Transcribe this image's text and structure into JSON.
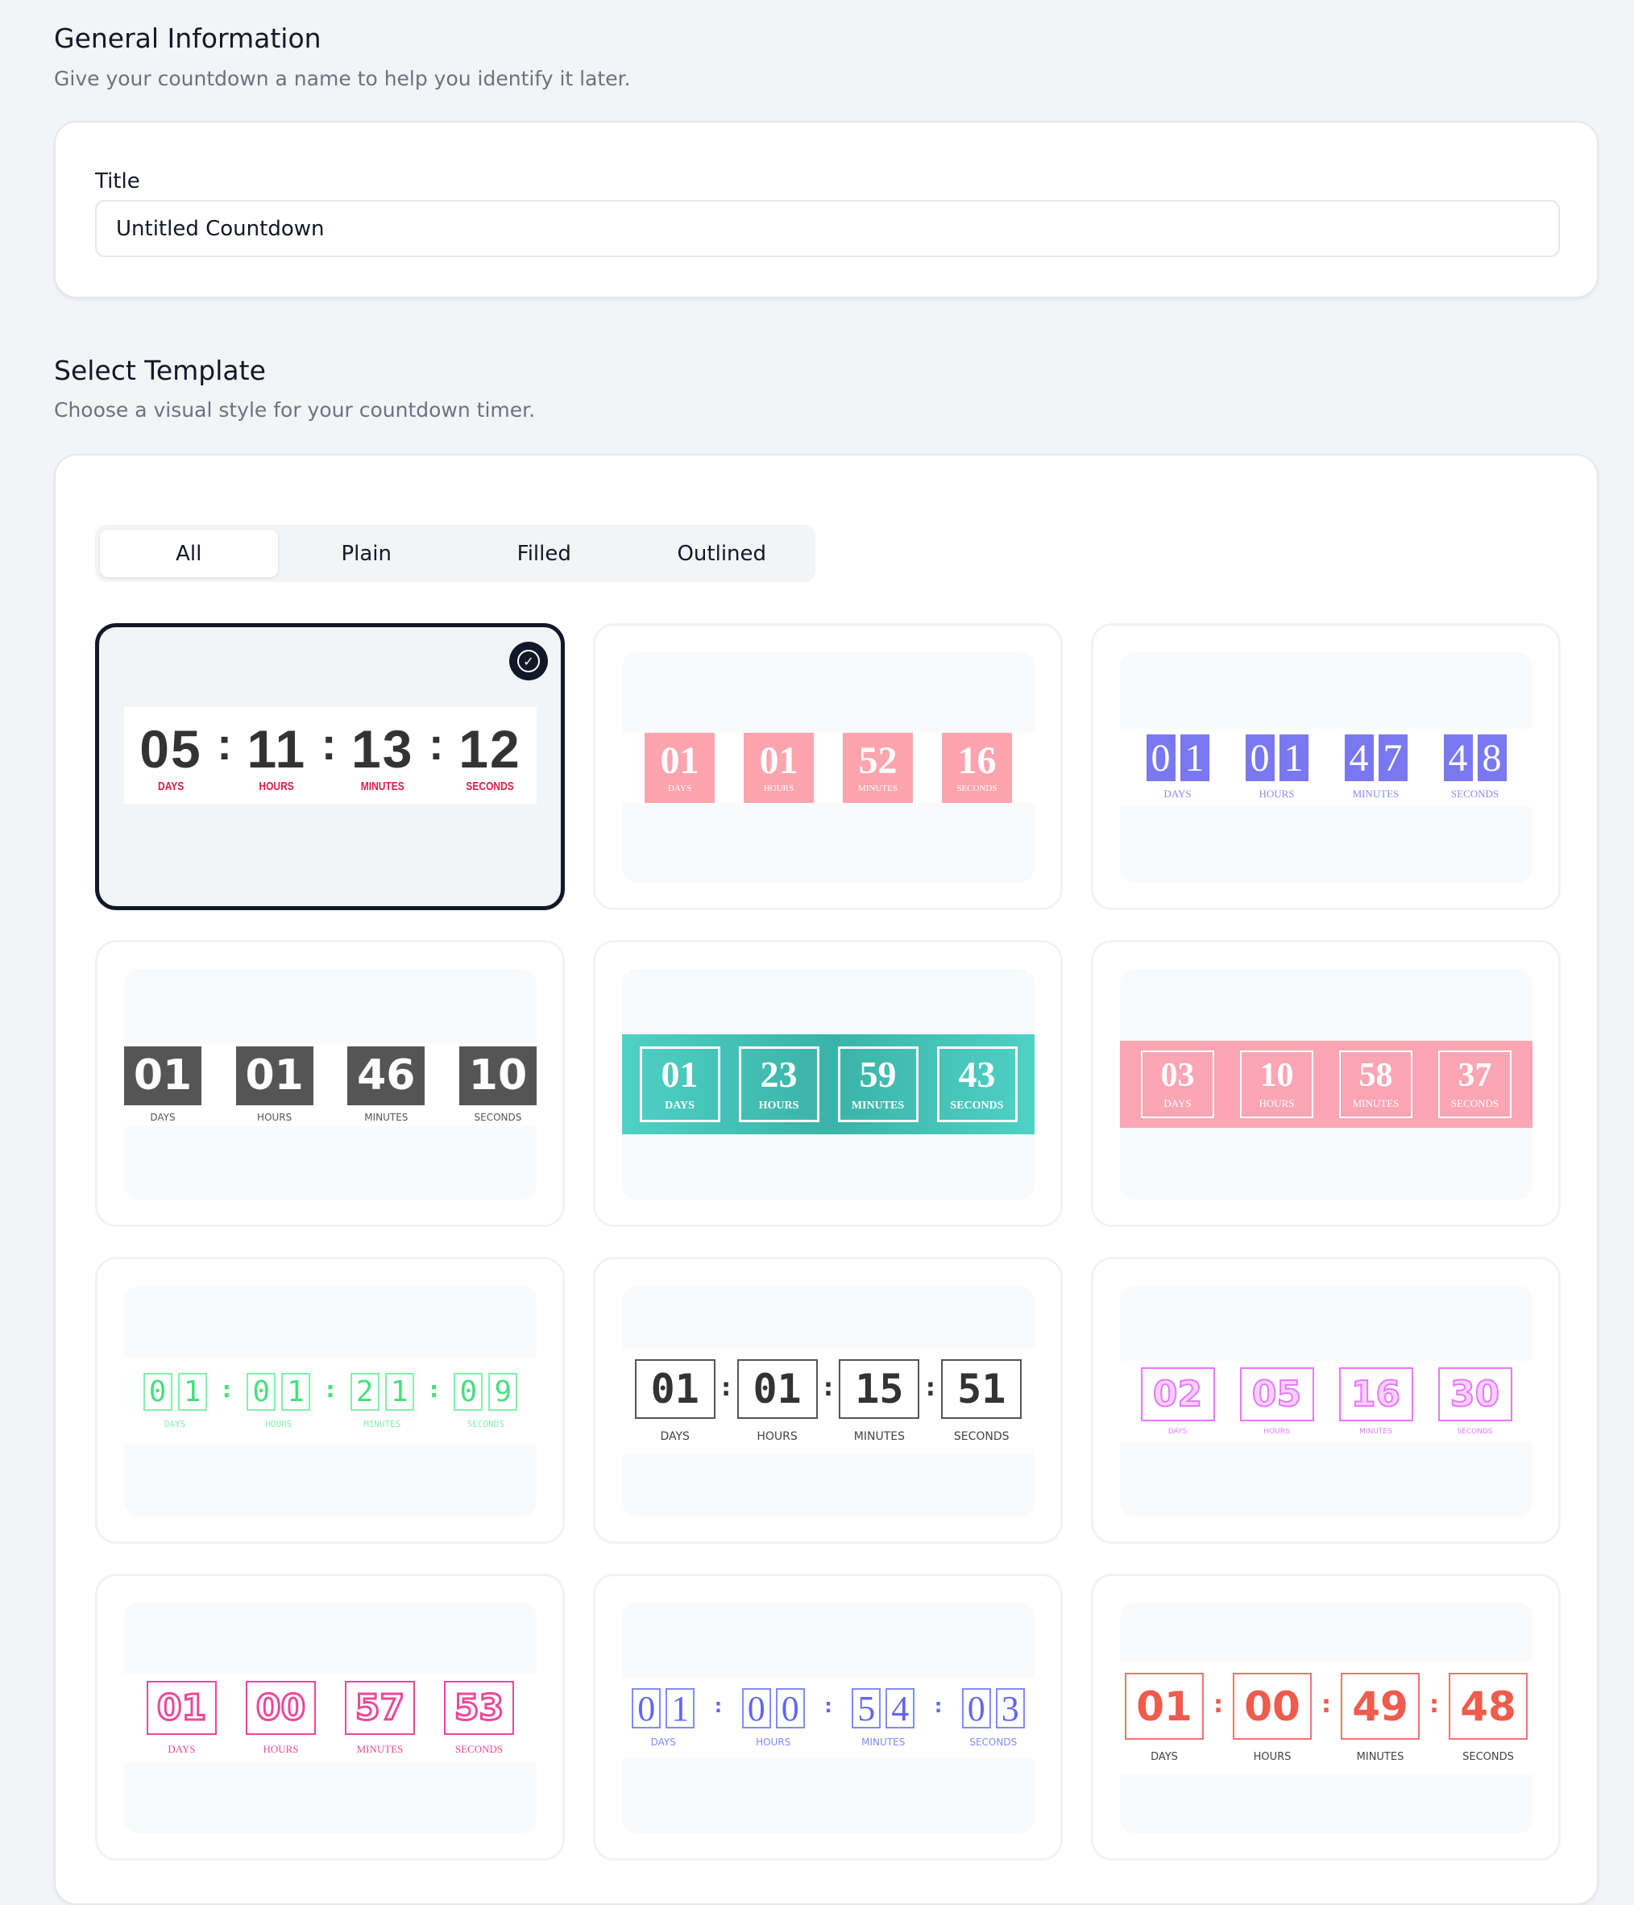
{
  "general": {
    "title": "General Information",
    "subtitle": "Give your countdown a name to help you identify it later.",
    "field_label": "Title",
    "field_value": "Untitled Countdown"
  },
  "template_section": {
    "title": "Select Template",
    "subtitle": "Choose a visual style for your countdown timer.",
    "tabs": [
      {
        "label": "All",
        "active": true
      },
      {
        "label": "Plain",
        "active": false
      },
      {
        "label": "Filled",
        "active": false
      },
      {
        "label": "Outlined",
        "active": false
      }
    ],
    "unit_labels": [
      "Days",
      "Hours",
      "Minutes",
      "Seconds"
    ],
    "selected_icon": "check-circle-icon",
    "templates": [
      {
        "style": "t1",
        "selected": true,
        "values": [
          "05",
          "11",
          "13",
          "12"
        ],
        "separator": ":",
        "split": false,
        "accent": "#e11d48"
      },
      {
        "style": "t2",
        "selected": false,
        "values": [
          "01",
          "01",
          "52",
          "16"
        ],
        "separator": "",
        "split": false,
        "accent": "#fda4af"
      },
      {
        "style": "t3",
        "selected": false,
        "values": [
          "01",
          "01",
          "47",
          "48"
        ],
        "separator": "",
        "split": true,
        "accent": "#7a78ef"
      },
      {
        "style": "t4",
        "selected": false,
        "values": [
          "01",
          "01",
          "46",
          "10"
        ],
        "separator": "",
        "split": false,
        "accent": "#555555"
      },
      {
        "style": "t5",
        "selected": false,
        "values": [
          "01",
          "23",
          "59",
          "43"
        ],
        "separator": "",
        "split": false,
        "accent": "#4fd1c5"
      },
      {
        "style": "t6",
        "selected": false,
        "values": [
          "03",
          "10",
          "58",
          "37"
        ],
        "separator": "",
        "split": false,
        "accent": "#fca5b5"
      },
      {
        "style": "t7",
        "selected": false,
        "values": [
          "01",
          "01",
          "21",
          "09"
        ],
        "separator": ":",
        "split": true,
        "accent": "#4ade80"
      },
      {
        "style": "t8",
        "selected": false,
        "values": [
          "01",
          "01",
          "15",
          "51"
        ],
        "separator": ":",
        "split": false,
        "accent": "#333333"
      },
      {
        "style": "t9",
        "selected": false,
        "values": [
          "02",
          "05",
          "16",
          "30"
        ],
        "separator": "",
        "split": false,
        "accent": "#e879f9"
      },
      {
        "style": "t10",
        "selected": false,
        "values": [
          "01",
          "00",
          "57",
          "53"
        ],
        "separator": "",
        "split": false,
        "accent": "#ec4899"
      },
      {
        "style": "t11",
        "selected": false,
        "values": [
          "01",
          "00",
          "54",
          "03"
        ],
        "separator": ":",
        "split": true,
        "accent": "#818cf8"
      },
      {
        "style": "t12",
        "selected": false,
        "values": [
          "01",
          "00",
          "49",
          "48"
        ],
        "separator": ":",
        "split": false,
        "accent": "#f87171"
      }
    ]
  }
}
